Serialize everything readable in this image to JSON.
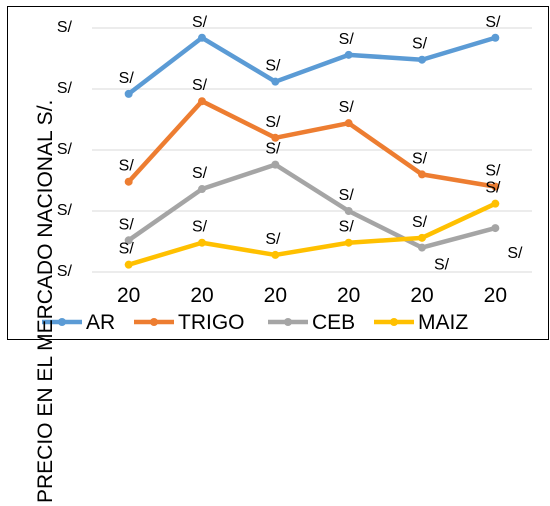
{
  "chart_data": {
    "type": "line",
    "title": "",
    "xlabel": "",
    "ylabel": "PRECIO EN EL MERCADO NACIONAL S/.",
    "categories": [
      "20",
      "20",
      "20",
      "20",
      "20",
      "20"
    ],
    "y_tick_labels": [
      "S/",
      "S/",
      "S/",
      "S/",
      "S/"
    ],
    "ylim": [
      0,
      100
    ],
    "grid": true,
    "legend_position": "bottom",
    "series": [
      {
        "name": "AR",
        "color": "#5B9BD5",
        "values": [
          73,
          96,
          78,
          89,
          87,
          96
        ],
        "labels": [
          "S/",
          "S/",
          "S/",
          "S/",
          "S/",
          "S/"
        ]
      },
      {
        "name": "TRIGO",
        "color": "#ED7D31",
        "values": [
          37,
          70,
          55,
          61,
          40,
          35
        ],
        "labels": [
          "S/",
          "S/",
          "S/",
          "S/",
          "S/",
          "S/"
        ]
      },
      {
        "name": "CEB",
        "color": "#A5A5A5",
        "values": [
          13,
          34,
          44,
          25,
          10,
          18
        ],
        "labels": [
          "S/",
          "S/",
          "S/",
          "S/",
          "S/",
          "S/"
        ]
      },
      {
        "name": "MAIZ",
        "color": "#FFC000",
        "values": [
          3,
          12,
          7,
          12,
          14,
          28
        ],
        "labels": [
          "S/",
          "S/",
          "S/",
          "S/",
          "S/",
          "S/"
        ]
      }
    ]
  }
}
